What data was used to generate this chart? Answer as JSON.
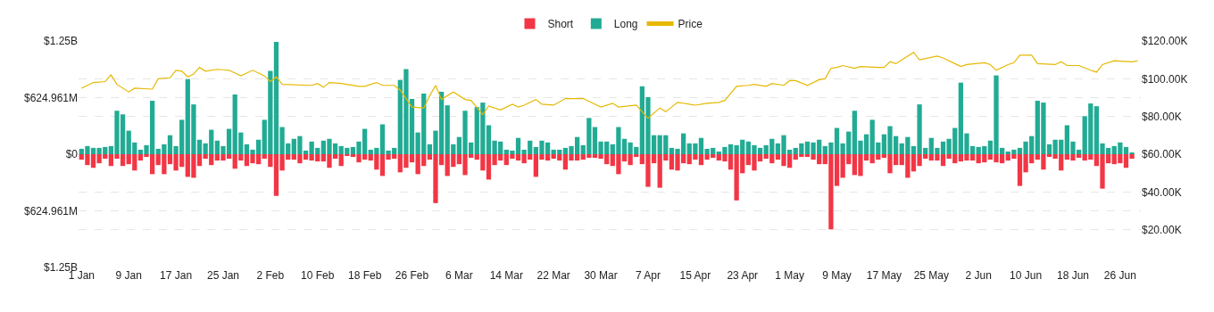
{
  "chart_data": {
    "type": "bar",
    "x": [
      "--01-01",
      "--01-02",
      "--01-03",
      "--01-04",
      "--01-05",
      "--01-06",
      "--01-07",
      "--01-08",
      "--01-09",
      "--01-10",
      "--01-11",
      "--01-12",
      "--01-13",
      "--01-14",
      "--01-15",
      "--01-16",
      "--01-17",
      "--01-18",
      "--01-19",
      "--01-20",
      "--01-21",
      "--01-22",
      "--01-23",
      "--01-24",
      "--01-25",
      "--01-26",
      "--01-27",
      "--01-28",
      "--01-29",
      "--01-30",
      "--01-31",
      "--02-01",
      "--02-02",
      "--02-03",
      "--02-04",
      "--02-05",
      "--02-06",
      "--02-07",
      "--02-08",
      "--02-09",
      "--02-10",
      "--02-11",
      "--02-12",
      "--02-13",
      "--02-14",
      "--02-15",
      "--02-16",
      "--02-17",
      "--02-18",
      "--02-19",
      "--02-20",
      "--02-21",
      "--02-22",
      "--02-23",
      "--02-24",
      "--02-25",
      "--02-26",
      "--02-27",
      "--02-28",
      "--03-01",
      "--03-02",
      "--03-03",
      "--03-04",
      "--03-05",
      "--03-06",
      "--03-07",
      "--03-08",
      "--03-09",
      "--03-10",
      "--03-11",
      "--03-12",
      "--03-13",
      "--03-14",
      "--03-15",
      "--03-16",
      "--03-17",
      "--03-18",
      "--03-19",
      "--03-20",
      "--03-21",
      "--03-22",
      "--03-23",
      "--03-24",
      "--03-25",
      "--03-26",
      "--03-27",
      "--03-28",
      "--03-29",
      "--03-30",
      "--03-31",
      "--04-01",
      "--04-02",
      "--04-03",
      "--04-04",
      "--04-05",
      "--04-06",
      "--04-07",
      "--04-08",
      "--04-09",
      "--04-10",
      "--04-11",
      "--04-12",
      "--04-13",
      "--04-14",
      "--04-15",
      "--04-16",
      "--04-17",
      "--04-18",
      "--04-19",
      "--04-20",
      "--04-21",
      "--04-22",
      "--04-23",
      "--04-24",
      "--04-25",
      "--04-26",
      "--04-27",
      "--04-28",
      "--04-29",
      "--04-30",
      "--05-01",
      "--05-02",
      "--05-03",
      "--05-04",
      "--05-05",
      "--05-06",
      "--05-07",
      "--05-08",
      "--05-09",
      "--05-10",
      "--05-11",
      "--05-12",
      "--05-13",
      "--05-14",
      "--05-15",
      "--05-16",
      "--05-17",
      "--05-18",
      "--05-19",
      "--05-20",
      "--05-21",
      "--05-22",
      "--05-23",
      "--05-24",
      "--05-25",
      "--05-26",
      "--05-27",
      "--05-28",
      "--05-29",
      "--05-30",
      "--05-31",
      "--06-01",
      "--06-02",
      "--06-03",
      "--06-04",
      "--06-05",
      "--06-06",
      "--06-07",
      "--06-08",
      "--06-09",
      "--06-10",
      "--06-11",
      "--06-12",
      "--06-13",
      "--06-14",
      "--06-15",
      "--06-16",
      "--06-17",
      "--06-18",
      "--06-19",
      "--06-20",
      "--06-21",
      "--06-22",
      "--06-23",
      "--06-24",
      "--06-25",
      "--06-26",
      "--06-27",
      "--06-28"
    ],
    "series": [
      {
        "name": "Short",
        "color": "#f23645",
        "values": [
          -60000000.0,
          -120000000.0,
          -150000000.0,
          -100000000.0,
          -50000000.0,
          -130000000.0,
          -50000000.0,
          -130000000.0,
          -110000000.0,
          -180000000.0,
          -70000000.0,
          -30000000.0,
          -220000000.0,
          -120000000.0,
          -220000000.0,
          -110000000.0,
          -180000000.0,
          -140000000.0,
          -250000000.0,
          -260000000.0,
          -130000000.0,
          -50000000.0,
          -120000000.0,
          -70000000.0,
          -70000000.0,
          -50000000.0,
          -160000000.0,
          -70000000.0,
          -130000000.0,
          -100000000.0,
          -110000000.0,
          -50000000.0,
          -140000000.0,
          -460000000.0,
          -180000000.0,
          -60000000.0,
          -60000000.0,
          -100000000.0,
          -60000000.0,
          -70000000.0,
          -80000000.0,
          -80000000.0,
          -150000000.0,
          -50000000.0,
          -130000000.0,
          -20000000.0,
          -30000000.0,
          -90000000.0,
          -60000000.0,
          -70000000.0,
          -170000000.0,
          -240000000.0,
          -60000000.0,
          -50000000.0,
          -200000000.0,
          -150000000.0,
          -90000000.0,
          -220000000.0,
          -130000000.0,
          -60000000.0,
          -540000000.0,
          -120000000.0,
          -240000000.0,
          -140000000.0,
          -110000000.0,
          -230000000.0,
          -40000000.0,
          -60000000.0,
          -180000000.0,
          -280000000.0,
          -120000000.0,
          -70000000.0,
          -120000000.0,
          -50000000.0,
          -70000000.0,
          -100000000.0,
          -60000000.0,
          -250000000.0,
          -60000000.0,
          -70000000.0,
          -50000000.0,
          -70000000.0,
          -170000000.0,
          -70000000.0,
          -70000000.0,
          -60000000.0,
          -40000000.0,
          -40000000.0,
          -50000000.0,
          -110000000.0,
          -130000000.0,
          -220000000.0,
          -80000000.0,
          -120000000.0,
          -30000000.0,
          -110000000.0,
          -360000000.0,
          -100000000.0,
          -370000000.0,
          -70000000.0,
          -170000000.0,
          -180000000.0,
          -100000000.0,
          -110000000.0,
          -60000000.0,
          -120000000.0,
          -60000000.0,
          -40000000.0,
          -70000000.0,
          -80000000.0,
          -170000000.0,
          -510000000.0,
          -210000000.0,
          -120000000.0,
          -180000000.0,
          -80000000.0,
          -50000000.0,
          -100000000.0,
          -60000000.0,
          -130000000.0,
          -150000000.0,
          -60000000.0,
          -30000000.0,
          -30000000.0,
          -60000000.0,
          -110000000.0,
          -110000000.0,
          -830000000.0,
          -350000000.0,
          -260000000.0,
          -110000000.0,
          -230000000.0,
          -240000000.0,
          -70000000.0,
          -100000000.0,
          -60000000.0,
          -40000000.0,
          -210000000.0,
          -120000000.0,
          -120000000.0,
          -260000000.0,
          -190000000.0,
          -130000000.0,
          -50000000.0,
          -70000000.0,
          -70000000.0,
          -130000000.0,
          -50000000.0,
          -100000000.0,
          -80000000.0,
          -70000000.0,
          -70000000.0,
          -100000000.0,
          -90000000.0,
          -60000000.0,
          -90000000.0,
          -100000000.0,
          -70000000.0,
          -50000000.0,
          -350000000.0,
          -200000000.0,
          -100000000.0,
          -60000000.0,
          -170000000.0,
          -30000000.0,
          -50000000.0,
          -180000000.0,
          -60000000.0,
          -70000000.0,
          -40000000.0,
          -70000000.0,
          -60000000.0,
          -130000000.0,
          -380000000.0,
          -100000000.0,
          -110000000.0,
          -100000000.0,
          -150000000.0,
          -50000000.0
        ]
      },
      {
        "name": "Long",
        "color": "#22ab94",
        "values": [
          60000000.0,
          90000000.0,
          70000000.0,
          70000000.0,
          80000000.0,
          90000000.0,
          480000000.0,
          440000000.0,
          260000000.0,
          130000000.0,
          50000000.0,
          100000000.0,
          590000000.0,
          60000000.0,
          110000000.0,
          210000000.0,
          90000000.0,
          380000000.0,
          830000000.0,
          550000000.0,
          160000000.0,
          120000000.0,
          270000000.0,
          150000000.0,
          90000000.0,
          280000000.0,
          660000000.0,
          240000000.0,
          110000000.0,
          50000000.0,
          160000000.0,
          380000000.0,
          920000000.0,
          1240000000.0,
          300000000.0,
          120000000.0,
          170000000.0,
          200000000.0,
          40000000.0,
          140000000.0,
          70000000.0,
          150000000.0,
          170000000.0,
          120000000.0,
          90000000.0,
          70000000.0,
          80000000.0,
          140000000.0,
          280000000.0,
          50000000.0,
          70000000.0,
          330000000.0,
          40000000.0,
          70000000.0,
          820000000.0,
          940000000.0,
          610000000.0,
          240000000.0,
          670000000.0,
          110000000.0,
          260000000.0,
          690000000.0,
          540000000.0,
          110000000.0,
          190000000.0,
          480000000.0,
          130000000.0,
          520000000.0,
          570000000.0,
          320000000.0,
          150000000.0,
          140000000.0,
          50000000.0,
          40000000.0,
          180000000.0,
          50000000.0,
          150000000.0,
          80000000.0,
          150000000.0,
          130000000.0,
          50000000.0,
          50000000.0,
          70000000.0,
          90000000.0,
          190000000.0,
          100000000.0,
          400000000.0,
          300000000.0,
          140000000.0,
          140000000.0,
          110000000.0,
          300000000.0,
          170000000.0,
          130000000.0,
          80000000.0,
          750000000.0,
          630000000.0,
          210000000.0,
          210000000.0,
          210000000.0,
          70000000.0,
          60000000.0,
          230000000.0,
          120000000.0,
          120000000.0,
          180000000.0,
          60000000.0,
          70000000.0,
          30000000.0,
          80000000.0,
          110000000.0,
          100000000.0,
          160000000.0,
          140000000.0,
          100000000.0,
          70000000.0,
          100000000.0,
          170000000.0,
          120000000.0,
          210000000.0,
          50000000.0,
          70000000.0,
          120000000.0,
          140000000.0,
          130000000.0,
          160000000.0,
          90000000.0,
          130000000.0,
          290000000.0,
          120000000.0,
          250000000.0,
          480000000.0,
          150000000.0,
          220000000.0,
          380000000.0,
          130000000.0,
          220000000.0,
          310000000.0,
          200000000.0,
          120000000.0,
          190000000.0,
          90000000.0,
          550000000.0,
          70000000.0,
          180000000.0,
          70000000.0,
          140000000.0,
          170000000.0,
          290000000.0,
          790000000.0,
          230000000.0,
          90000000.0,
          80000000.0,
          90000000.0,
          150000000.0,
          870000000.0,
          70000000.0,
          30000000.0,
          50000000.0,
          70000000.0,
          140000000.0,
          200000000.0,
          590000000.0,
          570000000.0,
          110000000.0,
          160000000.0,
          160000000.0,
          320000000.0,
          140000000.0,
          50000000.0,
          420000000.0,
          560000000.0,
          530000000.0,
          120000000.0,
          70000000.0,
          90000000.0,
          130000000.0,
          80000000.0,
          20000000.0
        ]
      },
      {
        "name": "Price",
        "type": "line",
        "axis": "y2",
        "color": "#e6b800",
        "x": [
          "--01-01",
          "--01-03",
          "--01-05",
          "--01-06",
          "--01-07",
          "--01-09",
          "--01-10",
          "--01-13",
          "--01-14",
          "--01-16",
          "--01-17",
          "--01-18",
          "--01-19",
          "--01-20",
          "--01-21",
          "--01-22",
          "--01-24",
          "--01-26",
          "--01-28",
          "--01-30",
          "--02-01",
          "--02-02",
          "--02-03",
          "--02-04",
          "--02-09",
          "--02-10",
          "--02-11",
          "--02-12",
          "--02-14",
          "--02-17",
          "--02-18",
          "--02-20",
          "--02-21",
          "--02-23",
          "--02-24",
          "--02-26",
          "--02-28",
          "--03-01",
          "--03-02",
          "--03-03",
          "--03-05",
          "--03-07",
          "--03-08",
          "--03-10",
          "--03-11",
          "--03-13",
          "--03-15",
          "--03-16",
          "--03-17",
          "--03-19",
          "--03-20",
          "--03-22",
          "--03-24",
          "--03-27",
          "--03-30",
          "--04-01",
          "--04-02",
          "--04-05",
          "--04-06",
          "--04-07",
          "--04-09",
          "--04-10",
          "--04-12",
          "--04-14",
          "--04-15",
          "--04-17",
          "--04-19",
          "--04-20",
          "--04-22",
          "--04-24",
          "--04-25",
          "--04-27",
          "--04-28",
          "--04-30",
          "--05-01",
          "--05-02",
          "--05-04",
          "--05-06",
          "--05-07",
          "--05-08",
          "--05-09",
          "--05-10",
          "--05-12",
          "--05-13",
          "--05-16",
          "--05-17",
          "--05-18",
          "--05-19",
          "--05-22",
          "--05-23",
          "--05-26",
          "--05-27",
          "--05-29",
          "--05-30",
          "--05-31",
          "--06-03",
          "--06-04",
          "--06-05",
          "--06-07",
          "--06-08",
          "--06-09",
          "--06-11",
          "--06-12",
          "--06-15",
          "--06-16",
          "--06-17",
          "--06-19",
          "--06-21",
          "--06-22",
          "--06-23",
          "--06-25",
          "--06-28",
          "--06-29"
        ],
        "values": [
          95000,
          98000,
          98500,
          102000,
          97000,
          93000,
          95000,
          94500,
          100000,
          100500,
          104500,
          104000,
          101000,
          102500,
          106000,
          104000,
          105000,
          104500,
          101500,
          104500,
          101500,
          98500,
          101000,
          97000,
          96500,
          97500,
          95500,
          98000,
          97500,
          96000,
          96000,
          98000,
          96500,
          96500,
          94000,
          85000,
          84500,
          91000,
          96500,
          89000,
          93000,
          89000,
          88500,
          81000,
          85500,
          83500,
          86500,
          85000,
          86000,
          89000,
          86500,
          86000,
          89500,
          89500,
          85000,
          87000,
          85000,
          86000,
          82500,
          79000,
          84500,
          82500,
          87500,
          86500,
          86000,
          87000,
          87500,
          88500,
          96000,
          96500,
          97000,
          96000,
          97500,
          96500,
          99000,
          99000,
          96500,
          99500,
          100000,
          105500,
          106000,
          107000,
          105500,
          106500,
          106000,
          106000,
          109000,
          108000,
          114000,
          110000,
          112000,
          111000,
          108000,
          106500,
          107500,
          108500,
          107500,
          104500,
          107500,
          108500,
          112500,
          112500,
          108000,
          107500,
          109000,
          107000,
          107000,
          104500,
          103500,
          107500,
          109500,
          109000,
          109500
        ]
      }
    ],
    "xlim": [
      "--01-01",
      "--06-30"
    ],
    "xticks": [
      {
        "value": "--01-01T12:00",
        "label": "1 Jan"
      },
      {
        "value": "--01-09T12:00",
        "label": "9 Jan"
      },
      {
        "value": "--01-17T12:00",
        "label": "17 Jan"
      },
      {
        "value": "--01-25T12:00",
        "label": "25 Jan"
      },
      {
        "value": "--02-02T12:00",
        "label": "2 Feb"
      },
      {
        "value": "--02-10T12:00",
        "label": "10 Feb"
      },
      {
        "value": "--02-18T12:00",
        "label": "18 Feb"
      },
      {
        "value": "--02-26T12:00",
        "label": "26 Feb"
      },
      {
        "value": "--03-06T12:00",
        "label": "6 Mar"
      },
      {
        "value": "--03-14T12:00",
        "label": "14 Mar"
      },
      {
        "value": "--03-22T12:00",
        "label": "22 Mar"
      },
      {
        "value": "--03-30T12:00",
        "label": "30 Mar"
      },
      {
        "value": "--04-07T12:00",
        "label": "7 Apr"
      },
      {
        "value": "--04-15T12:00",
        "label": "15 Apr"
      },
      {
        "value": "--04-23T12:00",
        "label": "23 Apr"
      },
      {
        "value": "--05-01T12:00",
        "label": "1 May"
      },
      {
        "value": "--05-09T12:00",
        "label": "9 May"
      },
      {
        "value": "--05-17T12:00",
        "label": "17 May"
      },
      {
        "value": "--05-25T12:00",
        "label": "25 May"
      },
      {
        "value": "--06-02T12:00",
        "label": "2 Jun"
      },
      {
        "value": "--06-10T12:00",
        "label": "10 Jun"
      },
      {
        "value": "--06-18T12:00",
        "label": "18 Jun"
      },
      {
        "value": "--06-26T12:00",
        "label": "26 Jun"
      }
    ],
    "ylim": [
      -1249922000,
      1249922000
    ],
    "yticks": [
      {
        "value": -1249922000,
        "label": "$1.25B"
      },
      {
        "value": -624961000,
        "label": "$624.961M"
      },
      {
        "value": 0,
        "label": "$0"
      },
      {
        "value": 624961000,
        "label": "$624.961M"
      },
      {
        "value": 1249922000,
        "label": "$1.25B"
      }
    ],
    "y2lim": [
      0,
      120000
    ],
    "y2ticks": [
      {
        "value": 20000,
        "label": "$20.00K"
      },
      {
        "value": 40000,
        "label": "$40.00K"
      },
      {
        "value": 60000,
        "label": "$60.00K"
      },
      {
        "value": 80000,
        "label": "$80.00K"
      },
      {
        "value": 100000,
        "label": "$100.00K"
      },
      {
        "value": 120000,
        "label": "$120.00K"
      }
    ],
    "stacked": true,
    "grid": "y",
    "legend": "top",
    "marker": "none"
  }
}
